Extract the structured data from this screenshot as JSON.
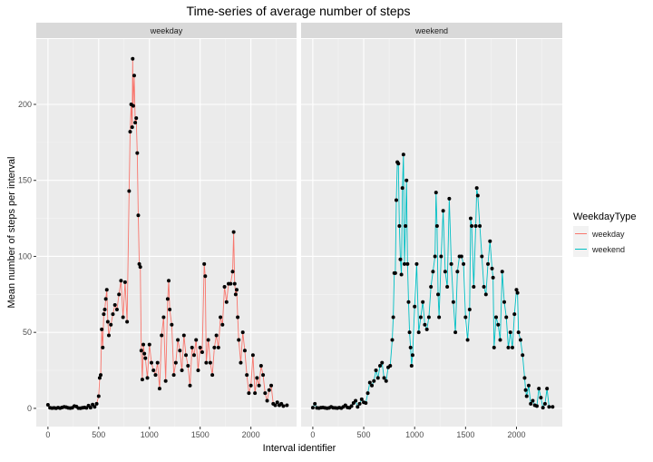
{
  "chart_data": {
    "type": "line",
    "title": "Time-series of average number of steps",
    "xlabel": "Interval identifier",
    "ylabel": "Mean number of steps per interval",
    "xlim": [
      -115,
      2450
    ],
    "ylim": [
      -12,
      243
    ],
    "x_ticks": [
      0,
      500,
      1000,
      1500,
      2000
    ],
    "y_ticks": [
      0,
      50,
      100,
      150,
      200
    ],
    "grid": true,
    "legend": {
      "title": "WeekdayType",
      "placement": "right",
      "entries": [
        {
          "label": "weekday",
          "color": "#F8766D"
        },
        {
          "label": "weekend",
          "color": "#00BFC4"
        }
      ]
    },
    "panels": [
      {
        "strip": "weekday",
        "color": "#F8766D",
        "points": [
          [
            0,
            2.3
          ],
          [
            20,
            0.4
          ],
          [
            40,
            0.2
          ],
          [
            60,
            0.3
          ],
          [
            80,
            0.1
          ],
          [
            100,
            0.5
          ],
          [
            120,
            0.2
          ],
          [
            140,
            0.6
          ],
          [
            160,
            1.0
          ],
          [
            180,
            0.8
          ],
          [
            200,
            0.3
          ],
          [
            220,
            0.2
          ],
          [
            240,
            0.4
          ],
          [
            260,
            1.5
          ],
          [
            280,
            1.2
          ],
          [
            300,
            0.2
          ],
          [
            320,
            0.1
          ],
          [
            340,
            0.4
          ],
          [
            360,
            0.6
          ],
          [
            380,
            0.3
          ],
          [
            400,
            1.8
          ],
          [
            420,
            0.5
          ],
          [
            440,
            2.5
          ],
          [
            460,
            1.0
          ],
          [
            480,
            3.0
          ],
          [
            500,
            8.0
          ],
          [
            510,
            20.0
          ],
          [
            520,
            22.0
          ],
          [
            530,
            52.0
          ],
          [
            540,
            40.0
          ],
          [
            550,
            62.0
          ],
          [
            560,
            65.0
          ],
          [
            570,
            72.0
          ],
          [
            580,
            78.0
          ],
          [
            590,
            57.0
          ],
          [
            600,
            48.0
          ],
          [
            620,
            55.0
          ],
          [
            640,
            62.0
          ],
          [
            660,
            68.0
          ],
          [
            680,
            65.0
          ],
          [
            700,
            75.0
          ],
          [
            720,
            84.0
          ],
          [
            740,
            60.0
          ],
          [
            760,
            83.0
          ],
          [
            780,
            57.0
          ],
          [
            800,
            143.0
          ],
          [
            810,
            182.0
          ],
          [
            820,
            200.0
          ],
          [
            830,
            185.0
          ],
          [
            835,
            230.0
          ],
          [
            840,
            199.0
          ],
          [
            850,
            219.0
          ],
          [
            860,
            188.0
          ],
          [
            870,
            191.0
          ],
          [
            880,
            168.0
          ],
          [
            890,
            127.0
          ],
          [
            900,
            95.0
          ],
          [
            910,
            93.0
          ],
          [
            920,
            38.0
          ],
          [
            930,
            19.0
          ],
          [
            940,
            42.0
          ],
          [
            950,
            36.0
          ],
          [
            960,
            33.0
          ],
          [
            980,
            20.0
          ],
          [
            1000,
            42.0
          ],
          [
            1020,
            30.0
          ],
          [
            1040,
            25.0
          ],
          [
            1060,
            22.0
          ],
          [
            1080,
            30.0
          ],
          [
            1100,
            13.0
          ],
          [
            1120,
            48.0
          ],
          [
            1140,
            60.0
          ],
          [
            1160,
            18.0
          ],
          [
            1180,
            72.0
          ],
          [
            1190,
            84.0
          ],
          [
            1200,
            65.0
          ],
          [
            1220,
            55.0
          ],
          [
            1240,
            22.0
          ],
          [
            1260,
            30.0
          ],
          [
            1280,
            45.0
          ],
          [
            1300,
            38.0
          ],
          [
            1320,
            25.0
          ],
          [
            1340,
            48.0
          ],
          [
            1360,
            35.0
          ],
          [
            1380,
            28.0
          ],
          [
            1400,
            15.0
          ],
          [
            1420,
            40.0
          ],
          [
            1440,
            35.0
          ],
          [
            1460,
            45.0
          ],
          [
            1480,
            25.0
          ],
          [
            1500,
            40.0
          ],
          [
            1520,
            37.0
          ],
          [
            1540,
            95.0
          ],
          [
            1550,
            87.0
          ],
          [
            1560,
            30.0
          ],
          [
            1580,
            45.0
          ],
          [
            1600,
            30.0
          ],
          [
            1620,
            22.0
          ],
          [
            1640,
            40.0
          ],
          [
            1660,
            48.0
          ],
          [
            1680,
            40.0
          ],
          [
            1700,
            60.0
          ],
          [
            1720,
            55.0
          ],
          [
            1740,
            80.0
          ],
          [
            1760,
            70.0
          ],
          [
            1780,
            82.0
          ],
          [
            1800,
            82.0
          ],
          [
            1820,
            90.0
          ],
          [
            1830,
            116.0
          ],
          [
            1840,
            82.0
          ],
          [
            1850,
            75.0
          ],
          [
            1860,
            78.0
          ],
          [
            1870,
            60.0
          ],
          [
            1880,
            45.0
          ],
          [
            1900,
            30.0
          ],
          [
            1920,
            50.0
          ],
          [
            1940,
            38.0
          ],
          [
            1960,
            22.0
          ],
          [
            1980,
            10.0
          ],
          [
            2000,
            15.0
          ],
          [
            2020,
            35.0
          ],
          [
            2040,
            10.0
          ],
          [
            2060,
            20.0
          ],
          [
            2080,
            15.0
          ],
          [
            2100,
            28.0
          ],
          [
            2120,
            22.0
          ],
          [
            2140,
            10.0
          ],
          [
            2160,
            5.0
          ],
          [
            2180,
            12.0
          ],
          [
            2200,
            15.0
          ],
          [
            2220,
            3.0
          ],
          [
            2240,
            2.0
          ],
          [
            2260,
            4.0
          ],
          [
            2280,
            2.0
          ],
          [
            2300,
            3.0
          ],
          [
            2320,
            1.5
          ],
          [
            2355,
            2.0
          ]
        ]
      },
      {
        "strip": "weekend",
        "color": "#00BFC4",
        "points": [
          [
            0,
            0.5
          ],
          [
            20,
            3.0
          ],
          [
            40,
            0.3
          ],
          [
            60,
            0.2
          ],
          [
            80,
            0.5
          ],
          [
            100,
            0.6
          ],
          [
            120,
            0.3
          ],
          [
            140,
            0.1
          ],
          [
            160,
            0.3
          ],
          [
            180,
            1.0
          ],
          [
            200,
            0.4
          ],
          [
            220,
            0.3
          ],
          [
            240,
            0.2
          ],
          [
            260,
            0.5
          ],
          [
            280,
            0.2
          ],
          [
            300,
            1.0
          ],
          [
            320,
            2.0
          ],
          [
            340,
            0.6
          ],
          [
            360,
            0.4
          ],
          [
            380,
            1.5
          ],
          [
            400,
            3.5
          ],
          [
            420,
            5.0
          ],
          [
            440,
            1.0
          ],
          [
            460,
            3.0
          ],
          [
            480,
            6.0
          ],
          [
            500,
            4.0
          ],
          [
            520,
            3.5
          ],
          [
            540,
            10.0
          ],
          [
            560,
            17.0
          ],
          [
            580,
            15.0
          ],
          [
            600,
            18.0
          ],
          [
            620,
            25.0
          ],
          [
            640,
            20.0
          ],
          [
            660,
            28.0
          ],
          [
            680,
            30.0
          ],
          [
            700,
            20.0
          ],
          [
            720,
            18.0
          ],
          [
            740,
            27.0
          ],
          [
            760,
            28.0
          ],
          [
            780,
            45.0
          ],
          [
            790,
            60.0
          ],
          [
            800,
            89.0
          ],
          [
            810,
            89.0
          ],
          [
            820,
            137.0
          ],
          [
            830,
            162.0
          ],
          [
            840,
            161.0
          ],
          [
            850,
            120.0
          ],
          [
            860,
            98.0
          ],
          [
            870,
            88.0
          ],
          [
            880,
            145.0
          ],
          [
            890,
            167.0
          ],
          [
            900,
            95.0
          ],
          [
            910,
            120.0
          ],
          [
            920,
            150.0
          ],
          [
            930,
            95.0
          ],
          [
            940,
            70.0
          ],
          [
            950,
            50.0
          ],
          [
            960,
            40.0
          ],
          [
            970,
            28.0
          ],
          [
            980,
            35.0
          ],
          [
            1000,
            67.0
          ],
          [
            1020,
            95.0
          ],
          [
            1040,
            50.0
          ],
          [
            1060,
            60.0
          ],
          [
            1080,
            70.0
          ],
          [
            1100,
            55.0
          ],
          [
            1120,
            52.0
          ],
          [
            1140,
            60.0
          ],
          [
            1160,
            80.0
          ],
          [
            1180,
            90.0
          ],
          [
            1200,
            100.0
          ],
          [
            1210,
            142.0
          ],
          [
            1220,
            120.0
          ],
          [
            1230,
            75.0
          ],
          [
            1240,
            60.0
          ],
          [
            1260,
            100.0
          ],
          [
            1280,
            130.0
          ],
          [
            1300,
            90.0
          ],
          [
            1320,
            80.0
          ],
          [
            1340,
            138.0
          ],
          [
            1360,
            95.0
          ],
          [
            1380,
            70.0
          ],
          [
            1400,
            50.0
          ],
          [
            1420,
            90.0
          ],
          [
            1440,
            100.0
          ],
          [
            1460,
            100.0
          ],
          [
            1480,
            95.0
          ],
          [
            1500,
            60.0
          ],
          [
            1520,
            45.0
          ],
          [
            1540,
            65.0
          ],
          [
            1550,
            125.0
          ],
          [
            1560,
            120.0
          ],
          [
            1580,
            80.0
          ],
          [
            1600,
            120.0
          ],
          [
            1610,
            145.0
          ],
          [
            1620,
            140.0
          ],
          [
            1640,
            120.0
          ],
          [
            1660,
            100.0
          ],
          [
            1680,
            80.0
          ],
          [
            1700,
            75.0
          ],
          [
            1720,
            95.0
          ],
          [
            1740,
            110.0
          ],
          [
            1760,
            92.0
          ],
          [
            1770,
            86.0
          ],
          [
            1780,
            40.0
          ],
          [
            1800,
            60.0
          ],
          [
            1820,
            55.0
          ],
          [
            1840,
            45.0
          ],
          [
            1860,
            90.0
          ],
          [
            1880,
            70.0
          ],
          [
            1900,
            60.0
          ],
          [
            1920,
            40.0
          ],
          [
            1940,
            50.0
          ],
          [
            1960,
            40.0
          ],
          [
            1980,
            62.0
          ],
          [
            2000,
            78.0
          ],
          [
            2010,
            76.0
          ],
          [
            2020,
            50.0
          ],
          [
            2040,
            45.0
          ],
          [
            2060,
            35.0
          ],
          [
            2080,
            20.0
          ],
          [
            2090,
            12.0
          ],
          [
            2100,
            8.0
          ],
          [
            2120,
            15.0
          ],
          [
            2140,
            3.0
          ],
          [
            2160,
            5.0
          ],
          [
            2180,
            2.0
          ],
          [
            2200,
            1.5
          ],
          [
            2220,
            13.0
          ],
          [
            2240,
            7.0
          ],
          [
            2260,
            0.5
          ],
          [
            2280,
            3.0
          ],
          [
            2300,
            13.0
          ],
          [
            2320,
            1.0
          ],
          [
            2355,
            1.0
          ]
        ]
      }
    ]
  }
}
